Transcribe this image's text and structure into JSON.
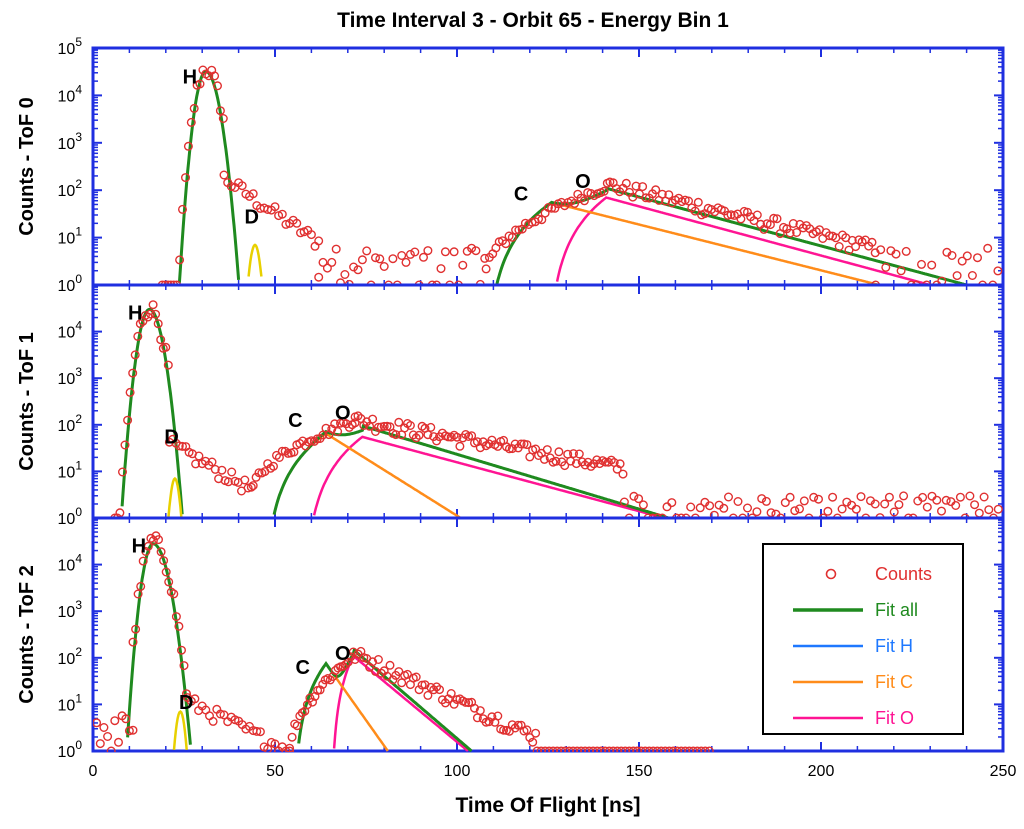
{
  "chart_data": {
    "type": "scatter",
    "title": "Time Interval 3 - Orbit 65 - Energy Bin 1",
    "xlabel": "Time Of Flight [ns]",
    "xlim": [
      0,
      250
    ],
    "x_ticks": [
      0,
      50,
      100,
      150,
      200,
      250
    ],
    "y_scale": "log",
    "ylim": [
      1,
      100000
    ],
    "y_ticks": [
      {
        "base": "10",
        "exp": "0"
      },
      {
        "base": "10",
        "exp": "1"
      },
      {
        "base": "10",
        "exp": "2"
      },
      {
        "base": "10",
        "exp": "3"
      },
      {
        "base": "10",
        "exp": "4"
      },
      {
        "base": "10",
        "exp": "5"
      }
    ],
    "colors": {
      "axis": "#1f2fe0",
      "counts": "#e03030",
      "fit_all": "#1f8a1f",
      "fit_h": "#1e78ff",
      "fit_c": "#ff8c1a",
      "fit_o": "#ff1493",
      "fit_d": "#e8d000"
    },
    "legend": {
      "position": "bottom-right of lower panel",
      "entries": [
        {
          "key": "counts",
          "label": "Counts",
          "marker": "circle"
        },
        {
          "key": "fit_all",
          "label": "Fit all",
          "marker": "line"
        },
        {
          "key": "fit_h",
          "label": "Fit H",
          "marker": "line"
        },
        {
          "key": "fit_c",
          "label": "Fit C",
          "marker": "line"
        },
        {
          "key": "fit_o",
          "label": "Fit O",
          "marker": "line"
        }
      ]
    },
    "panels": [
      {
        "ylabel": "Counts - ToF 0",
        "show_top_tick": true,
        "species": [
          {
            "label": "H",
            "x": 31,
            "y": 18000
          },
          {
            "label": "D",
            "x": 48,
            "y": 20
          },
          {
            "label": "C",
            "x": 122,
            "y": 60
          },
          {
            "label": "O",
            "x": 139,
            "y": 110
          }
        ],
        "peaks": {
          "H": {
            "mu": 31,
            "amp": 32000,
            "sl": 1.6,
            "sr": 2.0
          },
          "D": {
            "mu": 44.5,
            "amp": 7,
            "sl": 1.0,
            "sr": 1.0
          },
          "C": {
            "mu": 126,
            "amp": 55,
            "rise_start": 108,
            "tau_r": 5,
            "tail_end": 216
          },
          "O": {
            "mu": 141,
            "amp": 70,
            "rise_start": 125,
            "tau_r": 4,
            "tail_end": 230
          }
        },
        "fit_all_end": 240,
        "counts_regions": [
          {
            "type": "gauss",
            "mu": 31,
            "amp": 36000,
            "sl": 1.7,
            "sr": 2.2,
            "x0": 19,
            "x1": 36,
            "step": 0.8
          },
          {
            "type": "exp",
            "x0": 36,
            "x1": 62,
            "y0": 180,
            "y1": 8,
            "step": 1
          },
          {
            "type": "noise",
            "x0": 62,
            "x1": 108,
            "lo": 1,
            "hi": 6,
            "step": 1.2
          },
          {
            "type": "rise",
            "x0": 108,
            "x1": 142,
            "y0": 2,
            "y1": 130,
            "step": 0.9
          },
          {
            "type": "exp",
            "x0": 142,
            "x1": 215,
            "y0": 130,
            "y1": 6,
            "step": 0.9
          },
          {
            "type": "noise",
            "x0": 215,
            "x1": 250,
            "lo": 1,
            "hi": 6,
            "step": 1.4
          }
        ]
      },
      {
        "ylabel": "Counts - ToF 1",
        "show_top_tick": false,
        "species": [
          {
            "label": "H",
            "x": 16,
            "y": 18000
          },
          {
            "label": "D",
            "x": 26,
            "y": 40
          },
          {
            "label": "C",
            "x": 60,
            "y": 90
          },
          {
            "label": "O",
            "x": 73,
            "y": 130
          }
        ],
        "peaks": {
          "H": {
            "mu": 15.5,
            "amp": 30000,
            "sl": 1.7,
            "sr": 2.0
          },
          "D": {
            "mu": 22.5,
            "amp": 7,
            "sl": 0.9,
            "sr": 0.9
          },
          "C": {
            "mu": 64,
            "amp": 65,
            "rise_start": 47,
            "tau_r": 5,
            "tail_end": 101
          },
          "O": {
            "mu": 74,
            "amp": 55,
            "rise_start": 58,
            "tau_r": 4,
            "tail_end": 157
          }
        },
        "fit_all_end": 160,
        "counts_regions": [
          {
            "type": "gauss",
            "mu": 15.5,
            "amp": 33000,
            "sl": 1.8,
            "sr": 2.1,
            "x0": 6,
            "x1": 21,
            "step": 0.7
          },
          {
            "type": "exp",
            "x0": 21,
            "x1": 44,
            "y0": 40,
            "y1": 4,
            "step": 0.9
          },
          {
            "type": "rise",
            "x0": 44,
            "x1": 72,
            "y0": 4,
            "y1": 130,
            "step": 0.8
          },
          {
            "type": "exp",
            "x0": 72,
            "x1": 146,
            "y0": 130,
            "y1": 12,
            "step": 0.8
          },
          {
            "type": "noise",
            "x0": 146,
            "x1": 250,
            "lo": 1,
            "hi": 3,
            "step": 1.3
          }
        ]
      },
      {
        "ylabel": "Counts - ToF 2",
        "show_top_tick": false,
        "species": [
          {
            "label": "H",
            "x": 17,
            "y": 18000
          },
          {
            "label": "D",
            "x": 30,
            "y": 8
          },
          {
            "label": "C",
            "x": 62,
            "y": 45
          },
          {
            "label": "O",
            "x": 73,
            "y": 90
          }
        ],
        "peaks": {
          "H": {
            "mu": 16.5,
            "amp": 28000,
            "sl": 1.6,
            "sr": 2.3
          },
          "D": {
            "mu": 24,
            "amp": 7,
            "sl": 0.9,
            "sr": 0.9
          },
          "C": {
            "mu": 64,
            "amp": 75,
            "rise_start": 55,
            "tau_r": 3,
            "tail_end": 81
          },
          "O": {
            "mu": 71.5,
            "amp": 110,
            "rise_start": 65.5,
            "tau_r": 1.8,
            "tail_end": 103
          }
        },
        "fit_all_end": 104,
        "counts_regions": [
          {
            "type": "noise",
            "x0": 1,
            "x1": 11,
            "lo": 1,
            "hi": 6,
            "step": 1
          },
          {
            "type": "gauss",
            "mu": 16.5,
            "amp": 32000,
            "sl": 1.7,
            "sr": 2.4,
            "x0": 11,
            "x1": 26,
            "step": 0.7
          },
          {
            "type": "exp",
            "x0": 26,
            "x1": 54,
            "y0": 12,
            "y1": 1,
            "step": 1
          },
          {
            "type": "rise",
            "x0": 54,
            "x1": 72,
            "y0": 1,
            "y1": 120,
            "step": 0.7
          },
          {
            "type": "exp",
            "x0": 72,
            "x1": 122,
            "y0": 120,
            "y1": 2,
            "step": 0.8
          },
          {
            "type": "noise",
            "x0": 122,
            "x1": 170,
            "lo": 1,
            "hi": 1,
            "step": 1.1
          }
        ]
      }
    ]
  }
}
